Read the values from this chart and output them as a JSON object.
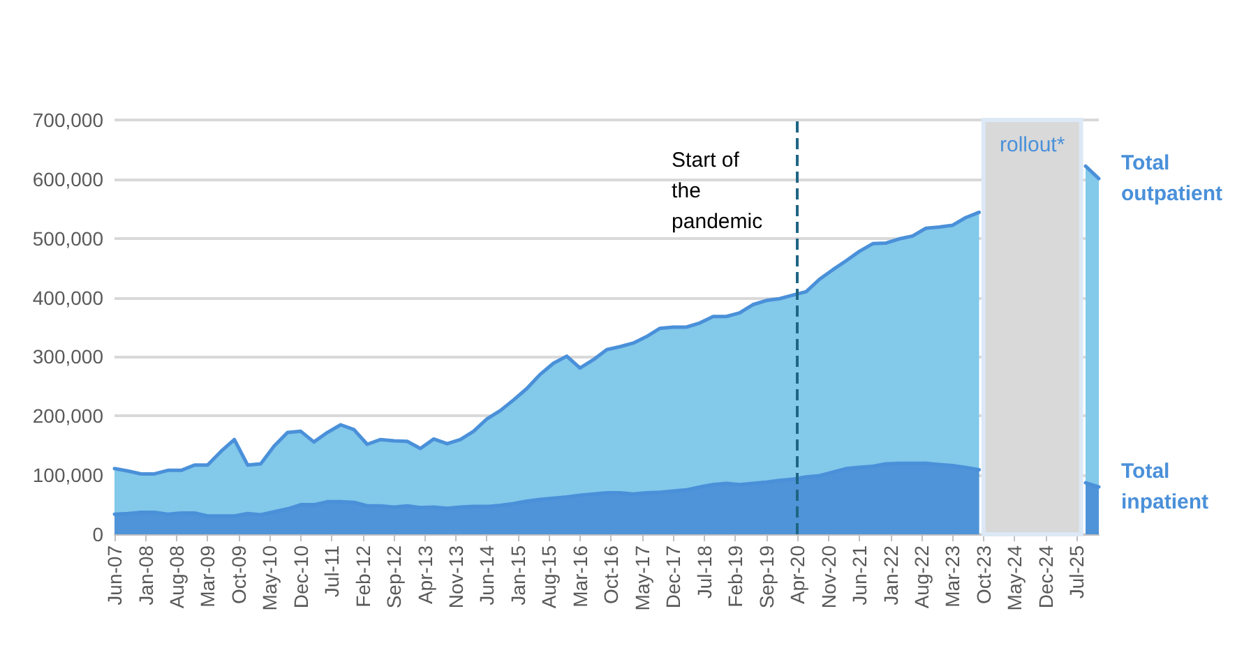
{
  "chart_data": {
    "type": "area",
    "x": [
      "2007-06",
      "2007-09",
      "2007-12",
      "2008-03",
      "2008-06",
      "2008-09",
      "2008-12",
      "2009-03",
      "2009-06",
      "2009-09",
      "2009-12",
      "2010-03",
      "2010-06",
      "2010-09",
      "2010-12",
      "2011-03",
      "2011-06",
      "2011-09",
      "2011-12",
      "2012-03",
      "2012-06",
      "2012-09",
      "2012-12",
      "2013-03",
      "2013-06",
      "2013-09",
      "2013-12",
      "2014-03",
      "2014-06",
      "2014-09",
      "2014-12",
      "2015-03",
      "2015-06",
      "2015-09",
      "2015-12",
      "2016-03",
      "2016-06",
      "2016-09",
      "2016-12",
      "2017-03",
      "2017-06",
      "2017-09",
      "2017-12",
      "2018-03",
      "2018-06",
      "2018-09",
      "2018-12",
      "2019-03",
      "2019-06",
      "2019-09",
      "2019-12",
      "2020-03",
      "2020-06",
      "2020-09",
      "2020-12",
      "2021-03",
      "2021-06",
      "2021-09",
      "2021-12",
      "2022-03",
      "2022-06",
      "2022-09",
      "2022-12",
      "2023-03",
      "2023-06",
      "2023-09",
      "2023-12",
      "2024-03",
      "2024-06",
      "2024-09",
      "2024-12",
      "2025-03",
      "2025-06",
      "2025-09",
      "2025-12"
    ],
    "series": [
      {
        "name": "Total outpatient",
        "color": "#82c9ea",
        "values": [
          111000,
          107000,
          102000,
          102000,
          108000,
          108000,
          117000,
          117000,
          140000,
          160000,
          117000,
          119000,
          149000,
          172000,
          174000,
          156000,
          172000,
          185000,
          177000,
          152000,
          160000,
          158000,
          157000,
          145000,
          161000,
          153000,
          160000,
          174000,
          195000,
          209000,
          227000,
          246000,
          270000,
          289000,
          301000,
          281000,
          295000,
          312000,
          317000,
          323000,
          334000,
          348000,
          350000,
          350000,
          357000,
          368000,
          368000,
          374000,
          388000,
          395000,
          398000,
          404000,
          410000,
          431000,
          447000,
          462000,
          478000,
          491000,
          492000,
          499000,
          504000,
          517000,
          519000,
          522000,
          535000,
          544000,
          null,
          null,
          null,
          null,
          null,
          null,
          null,
          622000,
          601000
        ]
      },
      {
        "name": "Total inpatient",
        "color": "#4f94d8",
        "values": [
          34000,
          35000,
          37000,
          37000,
          34000,
          36000,
          36000,
          31000,
          31000,
          31000,
          35000,
          33000,
          38000,
          43000,
          50000,
          50000,
          55000,
          55000,
          54000,
          48000,
          48000,
          46000,
          48000,
          45000,
          46000,
          44000,
          46000,
          47000,
          47000,
          49000,
          52000,
          56000,
          59000,
          61000,
          63000,
          66000,
          68000,
          70000,
          70000,
          68000,
          70000,
          71000,
          73000,
          75000,
          80000,
          84000,
          86000,
          84000,
          86000,
          88000,
          91000,
          93000,
          97000,
          99000,
          105000,
          111000,
          113000,
          115000,
          119000,
          120000,
          120000,
          120000,
          118000,
          116000,
          113000,
          109000,
          null,
          null,
          null,
          null,
          null,
          null,
          null,
          87000,
          80000
        ]
      }
    ],
    "xlim": [
      "2007-06",
      "2025-12"
    ],
    "xticks": [
      {
        "value": "2007-06",
        "label": "Jun-07"
      },
      {
        "value": "2008-01",
        "label": "Jan-08"
      },
      {
        "value": "2008-08",
        "label": "Aug-08"
      },
      {
        "value": "2009-03",
        "label": "Mar-09"
      },
      {
        "value": "2009-10",
        "label": "Oct-09"
      },
      {
        "value": "2010-05",
        "label": "May-10"
      },
      {
        "value": "2010-12",
        "label": "Dec-10"
      },
      {
        "value": "2011-07",
        "label": "Jul-11"
      },
      {
        "value": "2012-02",
        "label": "Feb-12"
      },
      {
        "value": "2012-09",
        "label": "Sep-12"
      },
      {
        "value": "2013-04",
        "label": "Apr-13"
      },
      {
        "value": "2013-11",
        "label": "Nov-13"
      },
      {
        "value": "2014-06",
        "label": "Jun-14"
      },
      {
        "value": "2015-01",
        "label": "Jan-15"
      },
      {
        "value": "2015-08",
        "label": "Aug-15"
      },
      {
        "value": "2016-03",
        "label": "Mar-16"
      },
      {
        "value": "2016-10",
        "label": "Oct-16"
      },
      {
        "value": "2017-05",
        "label": "May-17"
      },
      {
        "value": "2017-12",
        "label": "Dec-17"
      },
      {
        "value": "2018-07",
        "label": "Jul-18"
      },
      {
        "value": "2019-02",
        "label": "Feb-19"
      },
      {
        "value": "2019-09",
        "label": "Sep-19"
      },
      {
        "value": "2020-04",
        "label": "Apr-20"
      },
      {
        "value": "2020-11",
        "label": "Nov-20"
      },
      {
        "value": "2021-06",
        "label": "Jun-21"
      },
      {
        "value": "2022-01",
        "label": "Jan-22"
      },
      {
        "value": "2022-08",
        "label": "Aug-22"
      },
      {
        "value": "2023-03",
        "label": "Mar-23"
      },
      {
        "value": "2023-10",
        "label": "Oct-23"
      },
      {
        "value": "2024-05",
        "label": "May-24"
      },
      {
        "value": "2024-12",
        "label": "Dec-24"
      },
      {
        "value": "2025-07",
        "label": "Jul-25"
      }
    ],
    "ylim": [
      0,
      700000
    ],
    "yticks": [
      0,
      {
        "value": 100000,
        "label": "100,000"
      },
      {
        "value": 200000,
        "label": "200,000"
      },
      {
        "value": 300000,
        "label": "300,000"
      },
      {
        "value": 400000,
        "label": "400,000"
      },
      {
        "value": 500000,
        "label": "500,000"
      },
      {
        "value": 600000,
        "label": "600,000"
      },
      {
        "value": 700000,
        "label": "700,000"
      }
    ],
    "grid": "y",
    "legend": false,
    "marker": "none",
    "line_style": "solid",
    "ref_lines": [
      {
        "axis": "x",
        "value": "2020-04",
        "label": "Start of the pandemic",
        "color": "#1f6584",
        "line_style": "dashed"
      }
    ],
    "bands": [
      {
        "axis": "x",
        "from": "2023-10",
        "to": "2025-08",
        "label": "rollout*",
        "color": "#d9d9d9"
      }
    ]
  }
}
